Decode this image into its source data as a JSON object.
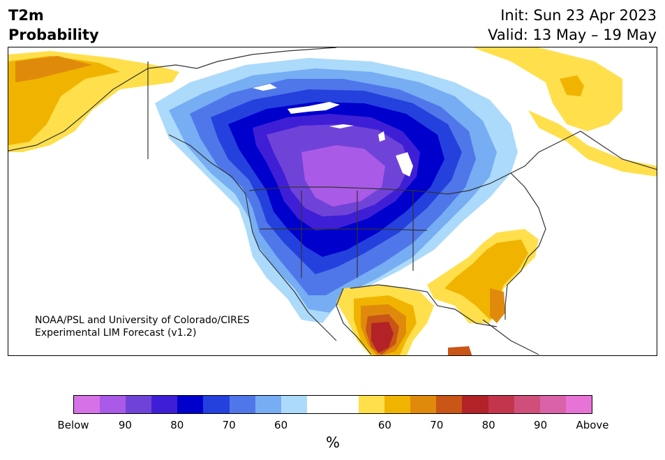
{
  "header": {
    "title_line1": "T2m",
    "title_line2": "Probability",
    "init_text": "Init: Sun 23 Apr 2023",
    "valid_text": "Valid: 13 May – 19 May"
  },
  "map": {
    "credit_line1": "NOAA/PSL and University of Colorado/CIRES",
    "credit_line2": "Experimental LIM Forecast (v1.2)"
  },
  "colorbar": {
    "colors": [
      "#d572e8",
      "#a95ae6",
      "#7043d8",
      "#3f1fd6",
      "#0000cc",
      "#2441dd",
      "#4f77ea",
      "#76adf3",
      "#acdafb",
      "#ffffff",
      "#ffffff",
      "#ffe04c",
      "#f0b400",
      "#e08a0c",
      "#c95516",
      "#b22226",
      "#c3354c",
      "#cf4f7a",
      "#da62a8",
      "#e873d6"
    ],
    "tick_labels": [
      "Below",
      "90",
      "80",
      "70",
      "60",
      "60",
      "70",
      "80",
      "90",
      "Above"
    ],
    "unit": "%"
  }
}
